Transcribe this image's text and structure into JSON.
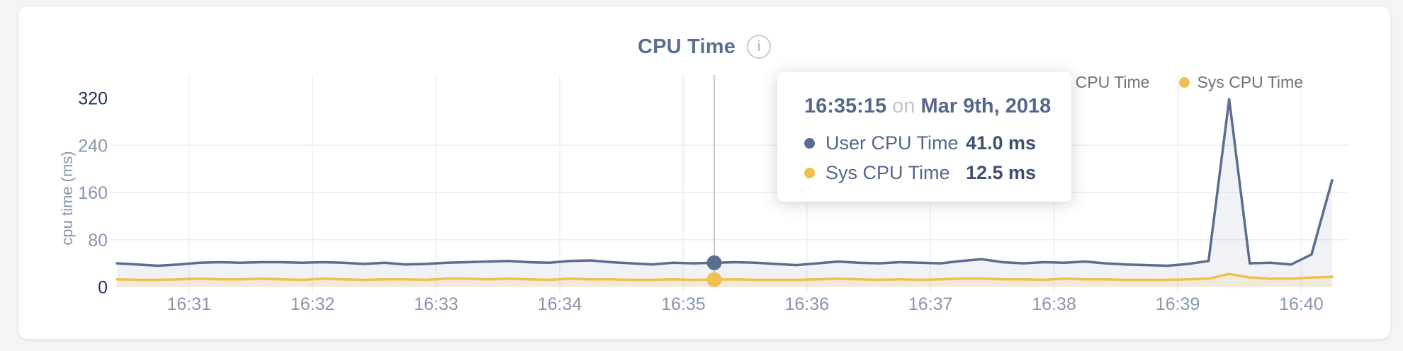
{
  "header": {
    "title": "CPU Time",
    "info_icon": "i"
  },
  "legend": {
    "items": [
      {
        "label": "User CPU Time",
        "color": "#5b6e8e"
      },
      {
        "label": "Sys CPU Time",
        "color": "#eec050"
      }
    ]
  },
  "tooltip": {
    "time": "16:35:15",
    "connector": "on",
    "date": "Mar 9th, 2018",
    "rows": [
      {
        "label": "User CPU Time",
        "value": "41.0 ms",
        "color": "#5b6e8e"
      },
      {
        "label": "Sys CPU Time",
        "value": "12.5 ms",
        "color": "#eec050"
      }
    ]
  },
  "chart_data": {
    "type": "area",
    "title": "CPU Time",
    "xlabel": "",
    "ylabel": "cpu time (ms)",
    "ylim": [
      0,
      320
    ],
    "grid": true,
    "legend_position": "top-right",
    "y_ticks": [
      {
        "label": "320",
        "value": 320,
        "strong": true,
        "grid": false
      },
      {
        "label": "240",
        "value": 240,
        "strong": false,
        "grid": true
      },
      {
        "label": "160",
        "value": 160,
        "strong": false,
        "grid": true
      },
      {
        "label": "80",
        "value": 80,
        "strong": false,
        "grid": true
      },
      {
        "label": "0",
        "value": 0,
        "strong": true,
        "grid": false
      }
    ],
    "x_ticks": [
      "16:31",
      "16:32",
      "16:33",
      "16:34",
      "16:35",
      "16:36",
      "16:37",
      "16:38",
      "16:39",
      "16:40"
    ],
    "x": [
      "16:30:25",
      "16:30:35",
      "16:30:45",
      "16:30:55",
      "16:31:05",
      "16:31:15",
      "16:31:25",
      "16:31:35",
      "16:31:45",
      "16:31:55",
      "16:32:05",
      "16:32:15",
      "16:32:25",
      "16:32:35",
      "16:32:45",
      "16:32:55",
      "16:33:05",
      "16:33:15",
      "16:33:25",
      "16:33:35",
      "16:33:45",
      "16:33:55",
      "16:34:05",
      "16:34:15",
      "16:34:25",
      "16:34:35",
      "16:34:45",
      "16:34:55",
      "16:35:05",
      "16:35:15",
      "16:35:25",
      "16:35:35",
      "16:35:45",
      "16:35:55",
      "16:36:05",
      "16:36:15",
      "16:36:25",
      "16:36:35",
      "16:36:45",
      "16:36:55",
      "16:37:05",
      "16:37:15",
      "16:37:25",
      "16:37:35",
      "16:37:45",
      "16:37:55",
      "16:38:05",
      "16:38:15",
      "16:38:25",
      "16:38:35",
      "16:38:45",
      "16:38:55",
      "16:39:05",
      "16:39:15",
      "16:39:25",
      "16:39:35",
      "16:39:45",
      "16:39:55",
      "16:40:05",
      "16:40:15"
    ],
    "series": [
      {
        "name": "User CPU Time",
        "color": "#5b6e8e",
        "fill": "rgba(99,114,144,0.09)",
        "values": [
          40,
          38,
          36,
          38,
          41,
          42,
          41,
          42,
          42,
          41,
          42,
          41,
          39,
          41,
          38,
          39,
          41,
          42,
          43,
          44,
          42,
          41,
          44,
          45,
          42,
          40,
          38,
          41,
          40,
          41,
          42,
          41,
          39,
          37,
          40,
          43,
          41,
          40,
          42,
          41,
          40,
          44,
          47,
          42,
          40,
          42,
          41,
          43,
          40,
          38,
          37,
          36,
          39,
          44,
          318,
          40,
          41,
          38,
          55,
          181
        ]
      },
      {
        "name": "Sys CPU Time",
        "color": "#eec050",
        "fill": "rgba(238,192,80,0.16)",
        "values": [
          13,
          12,
          12,
          13,
          14,
          13,
          13,
          14,
          13,
          12,
          14,
          13,
          12,
          13,
          13,
          12,
          14,
          14,
          13,
          14,
          13,
          12,
          14,
          13,
          13,
          12,
          12,
          13,
          12,
          12.5,
          13,
          12,
          12,
          12,
          13,
          14,
          13,
          12,
          13,
          12,
          13,
          14,
          14,
          13,
          13,
          12,
          14,
          13,
          13,
          12,
          12,
          12,
          13,
          14,
          22,
          16,
          14,
          14,
          16,
          17
        ]
      }
    ],
    "hover": {
      "time": "16:35:15",
      "values": [
        41.0,
        12.5
      ]
    }
  },
  "colors": {
    "grid": "#edeef1",
    "tick_normal": "#8a96ab",
    "tick_strong": "#273550",
    "crosshair": "#c6c9ce"
  }
}
